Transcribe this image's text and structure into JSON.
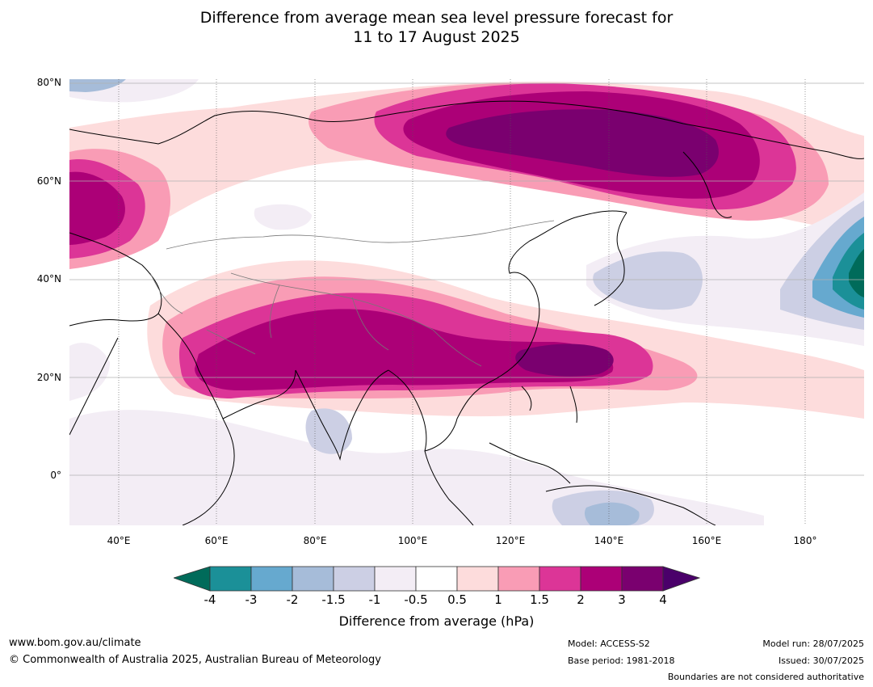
{
  "title": {
    "line1": "Difference from average mean sea level pressure forecast for",
    "line2": "11 to 17 August 2025"
  },
  "map": {
    "lat_labels": [
      "80°N",
      "60°N",
      "40°N",
      "20°N",
      "0°"
    ],
    "lon_labels": [
      "40°E",
      "60°E",
      "80°E",
      "100°E",
      "120°E",
      "140°E",
      "160°E",
      "180°"
    ],
    "lon_range": [
      30,
      192
    ],
    "lat_range": [
      -10,
      81
    ]
  },
  "colorbar": {
    "ticks": [
      "-4",
      "-3",
      "-2",
      "-1.5",
      "-1",
      "-0.5",
      "0.5",
      "1",
      "1.5",
      "2",
      "3",
      "4"
    ],
    "colors": [
      "#006b5a",
      "#1b9098",
      "#66a9cf",
      "#a6bcd9",
      "#cccfe4",
      "#f3edf5",
      "#ffffff",
      "#fddcdc",
      "#f99cb5",
      "#dc3597",
      "#ac0077",
      "#7a006f",
      "#4a006a"
    ],
    "label": "Difference from average (hPa)"
  },
  "footer": {
    "website": "www.bom.gov.au/climate",
    "copyright": "© Commonwealth of Australia 2025, Australian Bureau of Meteorology",
    "model": "Model: ACCESS-S2",
    "base_period": "Base period: 1981-2018",
    "model_run": "Model run: 28/07/2025",
    "issued": "Issued: 30/07/2025",
    "disclaimer": "Boundaries are not considered authoritative"
  }
}
